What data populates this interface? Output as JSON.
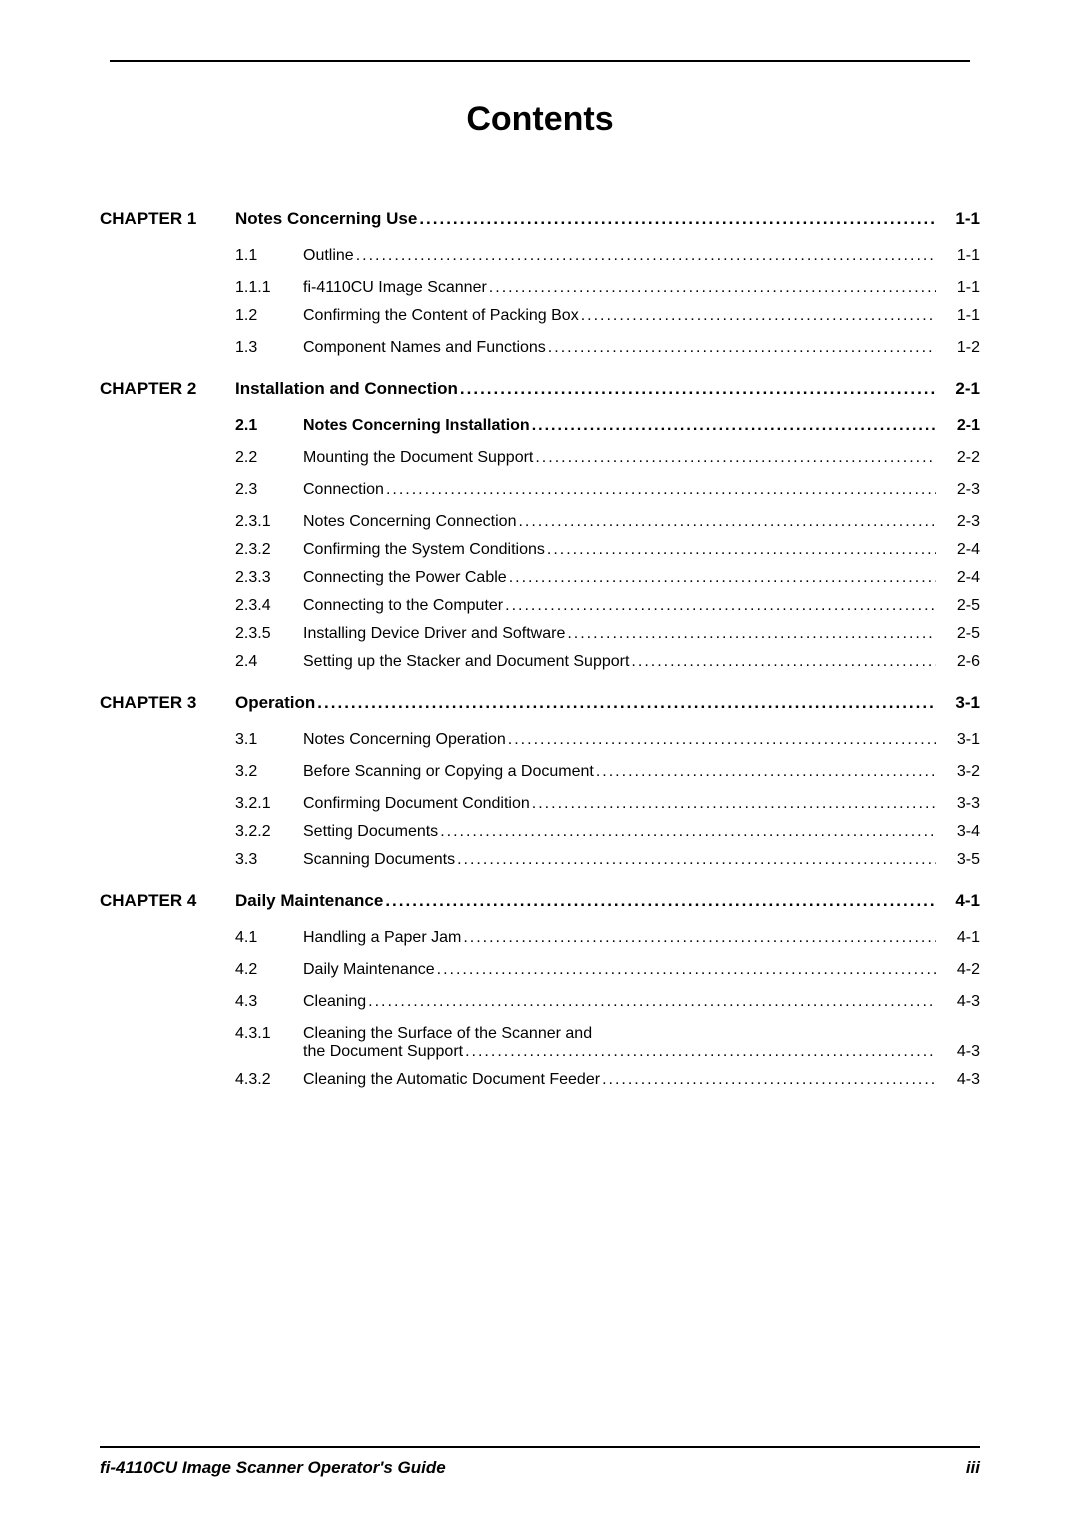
{
  "title": "Contents",
  "chapters": [
    {
      "chap_label": "CHAPTER 1",
      "heading": "Notes Concerning Use",
      "page": "1-1",
      "items": [
        {
          "kind": "section",
          "num": "1.1",
          "label": "Outline",
          "page": "1-1"
        },
        {
          "kind": "sub",
          "num": "1.1.1",
          "label": "fi-4110CU Image Scanner",
          "page": "1-1"
        },
        {
          "kind": "section",
          "num": "1.2",
          "label": "Confirming the Content of Packing Box",
          "page": "1-1"
        },
        {
          "kind": "section",
          "num": "1.3",
          "label": "Component Names and Functions",
          "page": "1-2"
        }
      ]
    },
    {
      "chap_label": "CHAPTER 2",
      "heading": "Installation and Connection",
      "page": "2-1",
      "items": [
        {
          "kind": "section",
          "num": "2.1",
          "label": "Notes Concerning Installation",
          "page": "2-1",
          "bold": true
        },
        {
          "kind": "section",
          "num": "2.2",
          "label": "Mounting the Document Support",
          "page": "2-2"
        },
        {
          "kind": "section",
          "num": "2.3",
          "label": "Connection",
          "page": "2-3"
        },
        {
          "kind": "sub",
          "num": "2.3.1",
          "label": "Notes Concerning Connection",
          "page": "2-3"
        },
        {
          "kind": "sub",
          "num": "2.3.2",
          "label": "Confirming the System Conditions",
          "page": "2-4"
        },
        {
          "kind": "sub",
          "num": "2.3.3",
          "label": "Connecting the Power Cable",
          "page": "2-4"
        },
        {
          "kind": "sub",
          "num": "2.3.4",
          "label": "Connecting to the Computer",
          "page": "2-5"
        },
        {
          "kind": "sub",
          "num": "2.3.5",
          "label": "Installing Device Driver and Software",
          "page": "2-5"
        },
        {
          "kind": "section",
          "num": "2.4",
          "label": "Setting up the Stacker and Document Support",
          "page": "2-6"
        }
      ]
    },
    {
      "chap_label": "CHAPTER 3",
      "heading": "Operation",
      "page": "3-1",
      "items": [
        {
          "kind": "section",
          "num": "3.1",
          "label": "Notes Concerning Operation",
          "page": "3-1"
        },
        {
          "kind": "section",
          "num": "3.2",
          "label": "Before Scanning or Copying a Document",
          "page": "3-2"
        },
        {
          "kind": "sub",
          "num": "3.2.1",
          "label": "Confirming Document Condition",
          "page": "3-3"
        },
        {
          "kind": "sub",
          "num": "3.2.2",
          "label": "Setting Documents",
          "page": "3-4"
        },
        {
          "kind": "section",
          "num": "3.3",
          "label": "Scanning Documents",
          "page": "3-5"
        }
      ]
    },
    {
      "chap_label": "CHAPTER 4",
      "heading": "Daily Maintenance",
      "page": "4-1",
      "items": [
        {
          "kind": "section",
          "num": "4.1",
          "label": "Handling a Paper Jam",
          "page": "4-1"
        },
        {
          "kind": "section",
          "num": "4.2",
          "label": "Daily Maintenance",
          "page": "4-2"
        },
        {
          "kind": "section",
          "num": "4.3",
          "label": "Cleaning",
          "page": "4-3"
        },
        {
          "kind": "sub",
          "num": "4.3.1",
          "label": "Cleaning the Surface of the Scanner and",
          "label2": "the Document Support",
          "page": "4-3",
          "multiline": true
        },
        {
          "kind": "sub",
          "num": "4.3.2",
          "label": "Cleaning the Automatic Document Feeder",
          "page": "4-3"
        }
      ]
    }
  ],
  "footer": {
    "left": "fi-4110CU Image Scanner Operator's Guide",
    "right": "iii"
  }
}
